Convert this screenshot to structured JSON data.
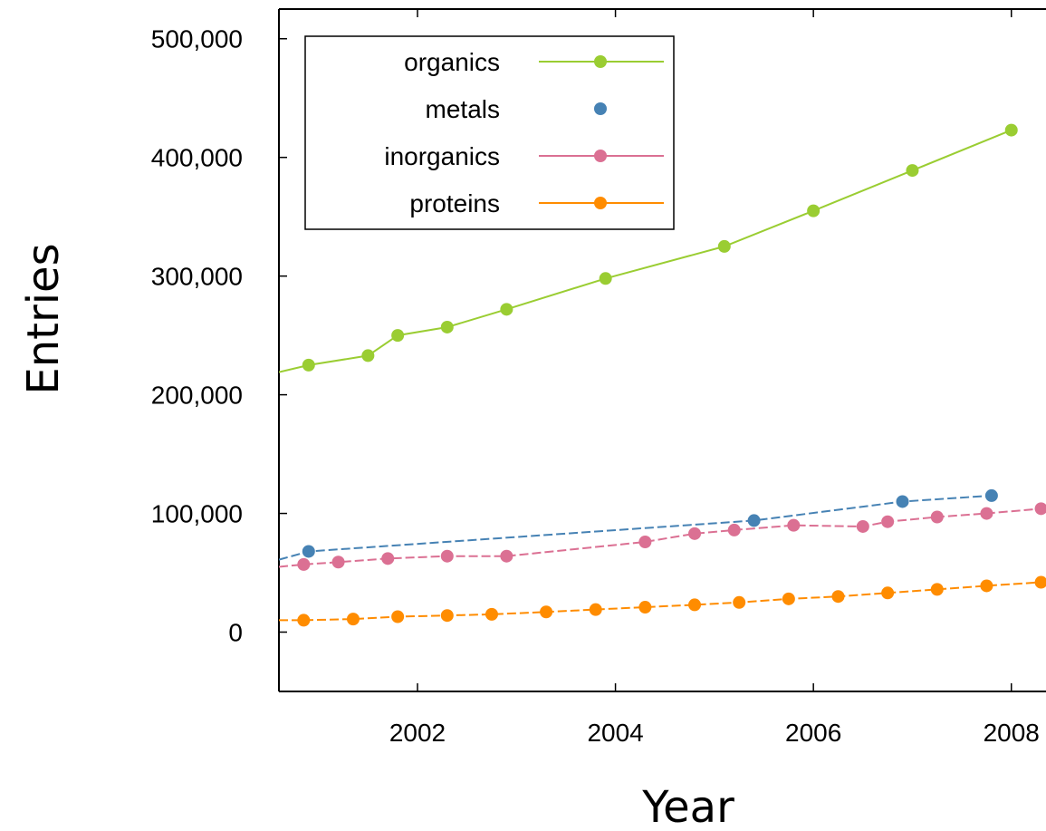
{
  "chart_data": {
    "type": "line",
    "xlabel": "Year",
    "ylabel": "Entries",
    "xlim": [
      2000.6,
      2008.35
    ],
    "ylim": [
      -50000,
      525000
    ],
    "x_ticks": [
      2002,
      2004,
      2006,
      2008
    ],
    "x_tick_labels": [
      "2002",
      "2004",
      "2006",
      "2008"
    ],
    "y_ticks": [
      0,
      100000,
      200000,
      300000,
      400000,
      500000
    ],
    "y_tick_labels": [
      "0",
      "100,000",
      "200,000",
      "300,000",
      "400,000",
      "500,000"
    ],
    "grid": false,
    "legend_position": "top-left",
    "series": [
      {
        "name": "organics",
        "color": "#9acd32",
        "line_style": "solid",
        "line_start": [
          2000.6,
          219000
        ],
        "points": [
          [
            2000.9,
            225000
          ],
          [
            2001.5,
            233000
          ],
          [
            2001.8,
            250000
          ],
          [
            2002.3,
            257000
          ],
          [
            2002.9,
            272000
          ],
          [
            2003.9,
            298000
          ],
          [
            2005.1,
            325000
          ],
          [
            2006.0,
            355000
          ],
          [
            2007.0,
            389000
          ],
          [
            2008.0,
            423000
          ]
        ]
      },
      {
        "name": "metals",
        "color": "#4682b4",
        "line_style": "dashed",
        "line_start": [
          2000.6,
          61000
        ],
        "points": [
          [
            2000.9,
            68000
          ],
          [
            2005.4,
            94000
          ],
          [
            2006.9,
            110000
          ],
          [
            2007.8,
            115000
          ]
        ]
      },
      {
        "name": "inorganics",
        "color": "#db7093",
        "line_style": "dashed",
        "line_start": [
          2000.6,
          55000
        ],
        "points": [
          [
            2000.85,
            57000
          ],
          [
            2001.2,
            59000
          ],
          [
            2001.7,
            62000
          ],
          [
            2002.3,
            64000
          ],
          [
            2002.9,
            64000
          ],
          [
            2004.3,
            76000
          ],
          [
            2004.8,
            83000
          ],
          [
            2005.2,
            86000
          ],
          [
            2005.8,
            90000
          ],
          [
            2006.5,
            89000
          ],
          [
            2006.75,
            93000
          ],
          [
            2007.25,
            97000
          ],
          [
            2007.75,
            100000
          ],
          [
            2008.3,
            104000
          ]
        ]
      },
      {
        "name": "proteins",
        "color": "#ff8c00",
        "line_style": "dashed",
        "line_start": [
          2000.6,
          10000
        ],
        "points": [
          [
            2000.85,
            10000
          ],
          [
            2001.35,
            11000
          ],
          [
            2001.8,
            13000
          ],
          [
            2002.3,
            14000
          ],
          [
            2002.75,
            15000
          ],
          [
            2003.3,
            17000
          ],
          [
            2003.8,
            19000
          ],
          [
            2004.3,
            21000
          ],
          [
            2004.8,
            23000
          ],
          [
            2005.25,
            25000
          ],
          [
            2005.75,
            28000
          ],
          [
            2006.25,
            30000
          ],
          [
            2006.75,
            33000
          ],
          [
            2007.25,
            36000
          ],
          [
            2007.75,
            39000
          ],
          [
            2008.3,
            42000
          ]
        ]
      }
    ]
  }
}
